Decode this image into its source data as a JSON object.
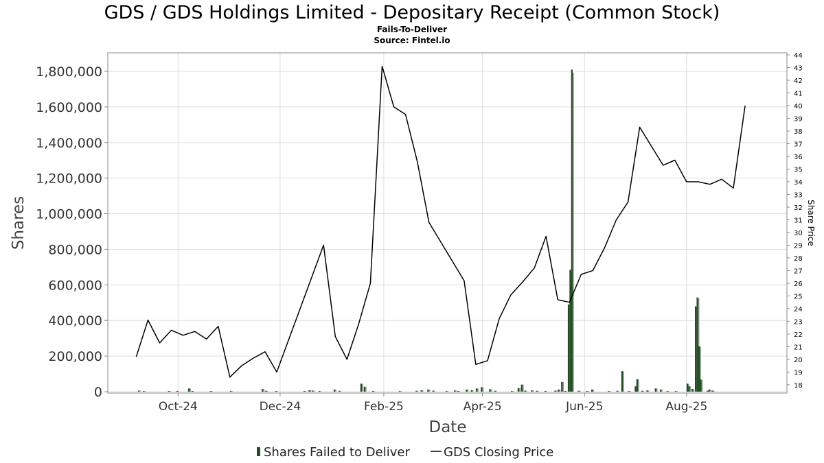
{
  "chart_data": {
    "type": "bar+line",
    "title": "GDS / GDS Holdings Limited - Depositary Receipt (Common Stock)",
    "subtitle_lines": [
      "Fails-To-Deliver",
      "Source: Fintel.io"
    ],
    "xlabel": "Date",
    "ylabel": "Shares",
    "y2label": "Share Price",
    "ylim": [
      0,
      1850000
    ],
    "y2lim": [
      17.4,
      44
    ],
    "yticks": [
      {
        "v": 0,
        "label": "0"
      },
      {
        "v": 200000,
        "label": "200,000"
      },
      {
        "v": 400000,
        "label": "400,000"
      },
      {
        "v": 600000,
        "label": "600,000"
      },
      {
        "v": 800000,
        "label": "800,000"
      },
      {
        "v": 1000000,
        "label": "1,000,000"
      },
      {
        "v": 1200000,
        "label": "1,200,000"
      },
      {
        "v": 1400000,
        "label": "1,400,000"
      },
      {
        "v": 1600000,
        "label": "1,600,000"
      },
      {
        "v": 1800000,
        "label": "1,800,000"
      }
    ],
    "y2ticks": [
      18,
      19,
      20,
      21,
      22,
      23,
      24,
      25,
      26,
      27,
      28,
      29,
      30,
      31,
      32,
      33,
      34,
      35,
      36,
      37,
      38,
      39,
      40,
      41,
      42,
      43,
      44
    ],
    "xlim": [
      "2024-08-20",
      "2025-09-30"
    ],
    "xticks": [
      {
        "date": "2024-10-01",
        "label": "Oct-24"
      },
      {
        "date": "2024-12-01",
        "label": "Dec-24"
      },
      {
        "date": "2025-02-01",
        "label": "Feb-25"
      },
      {
        "date": "2025-04-01",
        "label": "Apr-25"
      },
      {
        "date": "2025-06-01",
        "label": "Jun-25"
      },
      {
        "date": "2025-08-01",
        "label": "Aug-25"
      }
    ],
    "grid": true,
    "legend_position": "bottom-center",
    "colors": {
      "bars": "#1e4d1e",
      "bars_shadow": "#8c9a8c",
      "price_line": "#000000",
      "grid": "#dddddd",
      "frame": "#888888"
    },
    "series": [
      {
        "name": "Shares Failed to Deliver",
        "type": "bar",
        "points": [
          {
            "date": "2024-09-07",
            "v": 6000
          },
          {
            "date": "2024-09-10",
            "v": 2000
          },
          {
            "date": "2024-09-25",
            "v": 3000
          },
          {
            "date": "2024-09-30",
            "v": 2000
          },
          {
            "date": "2024-10-07",
            "v": 18000
          },
          {
            "date": "2024-10-09",
            "v": 4000
          },
          {
            "date": "2024-10-20",
            "v": 2000
          },
          {
            "date": "2024-11-01",
            "v": 3000
          },
          {
            "date": "2024-11-20",
            "v": 15000
          },
          {
            "date": "2024-11-22",
            "v": 5000
          },
          {
            "date": "2024-11-28",
            "v": 2000
          },
          {
            "date": "2024-12-15",
            "v": 4000
          },
          {
            "date": "2024-12-18",
            "v": 8000
          },
          {
            "date": "2024-12-20",
            "v": 6000
          },
          {
            "date": "2024-12-24",
            "v": 3000
          },
          {
            "date": "2025-01-02",
            "v": 12000
          },
          {
            "date": "2025-01-05",
            "v": 5000
          },
          {
            "date": "2025-01-18",
            "v": 45000
          },
          {
            "date": "2025-01-20",
            "v": 28000
          },
          {
            "date": "2025-01-25",
            "v": 3000
          },
          {
            "date": "2025-02-10",
            "v": 2000
          },
          {
            "date": "2025-02-20",
            "v": 5000
          },
          {
            "date": "2025-02-23",
            "v": 8000
          },
          {
            "date": "2025-02-27",
            "v": 12000
          },
          {
            "date": "2025-03-02",
            "v": 6000
          },
          {
            "date": "2025-03-10",
            "v": 4000
          },
          {
            "date": "2025-03-15",
            "v": 7000
          },
          {
            "date": "2025-03-17",
            "v": 2000
          },
          {
            "date": "2025-03-22",
            "v": 12000
          },
          {
            "date": "2025-03-25",
            "v": 8000
          },
          {
            "date": "2025-03-28",
            "v": 18000
          },
          {
            "date": "2025-03-31",
            "v": 25000
          },
          {
            "date": "2025-04-05",
            "v": 14000
          },
          {
            "date": "2025-04-08",
            "v": 5000
          },
          {
            "date": "2025-04-18",
            "v": 3000
          },
          {
            "date": "2025-04-22",
            "v": 20000
          },
          {
            "date": "2025-04-24",
            "v": 40000
          },
          {
            "date": "2025-04-26",
            "v": 6000
          },
          {
            "date": "2025-04-30",
            "v": 7000
          },
          {
            "date": "2025-05-03",
            "v": 5000
          },
          {
            "date": "2025-05-08",
            "v": 4000
          },
          {
            "date": "2025-05-14",
            "v": 6000
          },
          {
            "date": "2025-05-16",
            "v": 12000
          },
          {
            "date": "2025-05-18",
            "v": 55000
          },
          {
            "date": "2025-05-20",
            "v": 3000
          },
          {
            "date": "2025-05-22",
            "v": 490000
          },
          {
            "date": "2025-05-23",
            "v": 685000
          },
          {
            "date": "2025-05-24",
            "v": 1810000
          },
          {
            "date": "2025-05-28",
            "v": 5000
          },
          {
            "date": "2025-06-02",
            "v": 3000
          },
          {
            "date": "2025-06-05",
            "v": 12000
          },
          {
            "date": "2025-06-15",
            "v": 2000
          },
          {
            "date": "2025-06-20",
            "v": 5000
          },
          {
            "date": "2025-06-23",
            "v": 115000
          },
          {
            "date": "2025-06-27",
            "v": 2000
          },
          {
            "date": "2025-07-01",
            "v": 30000
          },
          {
            "date": "2025-07-02",
            "v": 70000
          },
          {
            "date": "2025-07-05",
            "v": 5000
          },
          {
            "date": "2025-07-08",
            "v": 7000
          },
          {
            "date": "2025-07-13",
            "v": 18000
          },
          {
            "date": "2025-07-16",
            "v": 12000
          },
          {
            "date": "2025-07-20",
            "v": 3000
          },
          {
            "date": "2025-07-25",
            "v": 2000
          },
          {
            "date": "2025-08-01",
            "v": 45000
          },
          {
            "date": "2025-08-02",
            "v": 30000
          },
          {
            "date": "2025-08-04",
            "v": 15000
          },
          {
            "date": "2025-08-06",
            "v": 480000
          },
          {
            "date": "2025-08-07",
            "v": 530000
          },
          {
            "date": "2025-08-08",
            "v": 255000
          },
          {
            "date": "2025-08-09",
            "v": 68000
          },
          {
            "date": "2025-08-13",
            "v": 5000
          },
          {
            "date": "2025-08-14",
            "v": 12000
          },
          {
            "date": "2025-08-16",
            "v": 6000
          }
        ]
      },
      {
        "name": "GDS Closing Price",
        "type": "line",
        "axis": "right",
        "points": [
          {
            "date": "2024-09-06",
            "v": 20.2
          },
          {
            "date": "2024-09-13",
            "v": 23.1
          },
          {
            "date": "2024-09-20",
            "v": 21.3
          },
          {
            "date": "2024-09-27",
            "v": 22.3
          },
          {
            "date": "2024-10-04",
            "v": 21.9
          },
          {
            "date": "2024-10-11",
            "v": 22.2
          },
          {
            "date": "2024-10-18",
            "v": 21.6
          },
          {
            "date": "2024-10-25",
            "v": 22.6
          },
          {
            "date": "2024-11-01",
            "v": 18.6
          },
          {
            "date": "2024-11-08",
            "v": 19.5
          },
          {
            "date": "2024-11-15",
            "v": 20.1
          },
          {
            "date": "2024-11-22",
            "v": 20.6
          },
          {
            "date": "2024-11-29",
            "v": 19.0
          },
          {
            "date": "2024-12-27",
            "v": 29.0
          },
          {
            "date": "2025-01-03",
            "v": 21.8
          },
          {
            "date": "2025-01-10",
            "v": 20.0
          },
          {
            "date": "2025-01-17",
            "v": 22.8
          },
          {
            "date": "2025-01-24",
            "v": 26.0
          },
          {
            "date": "2025-01-31",
            "v": 43.1
          },
          {
            "date": "2025-02-07",
            "v": 39.9
          },
          {
            "date": "2025-02-14",
            "v": 39.3
          },
          {
            "date": "2025-02-21",
            "v": 35.6
          },
          {
            "date": "2025-02-28",
            "v": 30.8
          },
          {
            "date": "2025-03-21",
            "v": 26.2
          },
          {
            "date": "2025-03-28",
            "v": 19.6
          },
          {
            "date": "2025-04-04",
            "v": 19.9
          },
          {
            "date": "2025-04-11",
            "v": 23.2
          },
          {
            "date": "2025-04-18",
            "v": 25.1
          },
          {
            "date": "2025-04-25",
            "v": 26.1
          },
          {
            "date": "2025-05-02",
            "v": 27.2
          },
          {
            "date": "2025-05-09",
            "v": 29.7
          },
          {
            "date": "2025-05-16",
            "v": 24.7
          },
          {
            "date": "2025-05-23",
            "v": 24.5
          },
          {
            "date": "2025-05-30",
            "v": 26.7
          },
          {
            "date": "2025-06-06",
            "v": 27.0
          },
          {
            "date": "2025-06-13",
            "v": 28.8
          },
          {
            "date": "2025-06-20",
            "v": 31.0
          },
          {
            "date": "2025-06-27",
            "v": 32.4
          },
          {
            "date": "2025-07-04",
            "v": 38.3
          },
          {
            "date": "2025-07-18",
            "v": 35.3
          },
          {
            "date": "2025-07-25",
            "v": 35.7
          },
          {
            "date": "2025-08-01",
            "v": 34.0
          },
          {
            "date": "2025-08-08",
            "v": 34.0
          },
          {
            "date": "2025-08-15",
            "v": 33.8
          },
          {
            "date": "2025-08-22",
            "v": 34.2
          },
          {
            "date": "2025-08-29",
            "v": 33.5
          },
          {
            "date": "2025-09-05",
            "v": 40.0
          }
        ]
      }
    ]
  },
  "legend": {
    "bars_label": "Shares Failed to Deliver",
    "line_label": "GDS Closing Price"
  }
}
